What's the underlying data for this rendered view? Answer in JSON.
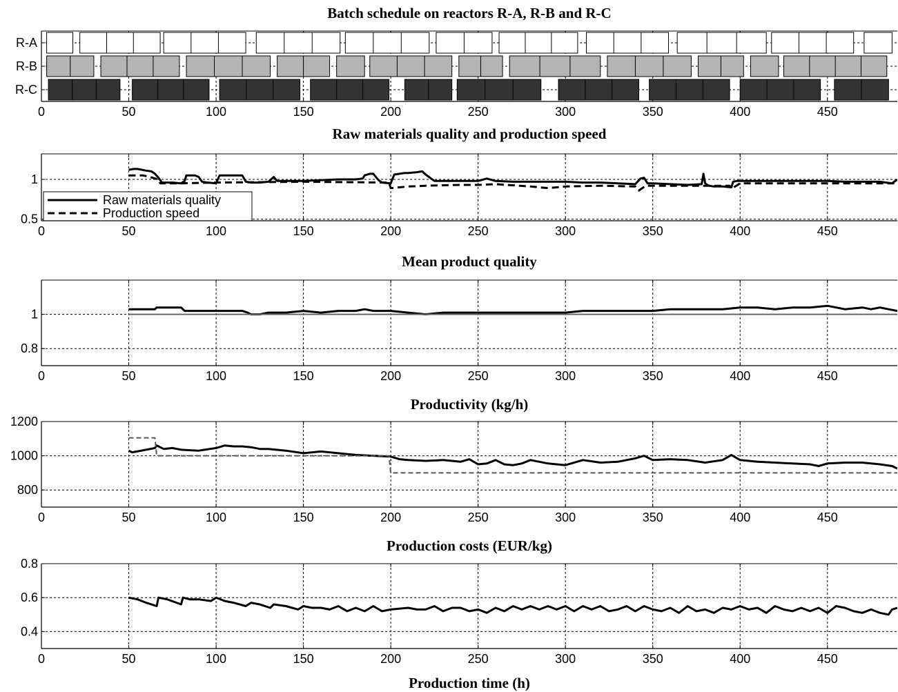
{
  "figure": {
    "xlabel": "Production time (h)"
  },
  "chart_data": [
    {
      "type": "gantt",
      "title": "Batch schedule on reactors R-A, R-B and R-C",
      "xlim": [
        0,
        490
      ],
      "xticks": [
        0,
        50,
        100,
        150,
        200,
        250,
        300,
        350,
        400,
        450
      ],
      "grid": true,
      "rows": [
        {
          "name": "R-A",
          "color": "#ffffff",
          "segments": [
            [
              3,
              18
            ],
            [
              22,
              68
            ],
            [
              70,
              117
            ],
            [
              123,
              171
            ],
            [
              174,
              222
            ],
            [
              226,
              258
            ],
            [
              262,
              307
            ],
            [
              312,
              359
            ],
            [
              364,
              415
            ],
            [
              418,
              465
            ],
            [
              471,
              487
            ]
          ]
        },
        {
          "name": "R-B",
          "color": "#b4b4b4",
          "segments": [
            [
              3,
              30
            ],
            [
              34,
              79
            ],
            [
              83,
              131
            ],
            [
              135,
              165
            ],
            [
              169,
              185
            ],
            [
              188,
              235
            ],
            [
              239,
              264
            ],
            [
              268,
              320
            ],
            [
              324,
              372
            ],
            [
              376,
              402
            ],
            [
              406,
              422
            ],
            [
              425,
              484
            ]
          ]
        },
        {
          "name": "R-C",
          "color": "#333333",
          "segments": [
            [
              4,
              45
            ],
            [
              52,
              96
            ],
            [
              102,
              148
            ],
            [
              154,
              199
            ],
            [
              208,
              235
            ],
            [
              238,
              286
            ],
            [
              296,
              342
            ],
            [
              348,
              394
            ],
            [
              400,
              446
            ],
            [
              454,
              485
            ]
          ]
        }
      ]
    },
    {
      "type": "line",
      "title": "Raw materials quality and production speed",
      "xlim": [
        0,
        490
      ],
      "ylim": [
        0.48,
        1.32
      ],
      "xticks": [
        0,
        50,
        100,
        150,
        200,
        250,
        300,
        350,
        400,
        450
      ],
      "yticks": [
        0.5,
        1
      ],
      "yticklabels": [
        "0.5",
        "1"
      ],
      "grid": true,
      "legend_placement": "bottom-left",
      "legend": [
        "Raw materials quality",
        "Production speed"
      ],
      "series": [
        {
          "name": "Raw materials quality",
          "style": "solid",
          "color": "#000000",
          "x": [
            50,
            53,
            55,
            60,
            63,
            65,
            67,
            69,
            75,
            80,
            82,
            83,
            85,
            88,
            90,
            92,
            95,
            100,
            102,
            105,
            110,
            115,
            117,
            120,
            125,
            130,
            133,
            135,
            140,
            150,
            160,
            170,
            180,
            184,
            185,
            188,
            190,
            193,
            195,
            200,
            202,
            205,
            208,
            210,
            215,
            218,
            220,
            225,
            230,
            240,
            250,
            255,
            260,
            270,
            280,
            290,
            300,
            310,
            320,
            330,
            340,
            343,
            345,
            347,
            350,
            360,
            370,
            378,
            379,
            380,
            382,
            385,
            390,
            395,
            396,
            398,
            400,
            410,
            420,
            430,
            440,
            450,
            460,
            470,
            480,
            487,
            490
          ],
          "y": [
            1.12,
            1.13,
            1.13,
            1.11,
            1.1,
            1.07,
            1.02,
            0.96,
            0.96,
            0.95,
            0.98,
            1.05,
            1.05,
            1.05,
            1.03,
            0.97,
            0.96,
            0.95,
            1.05,
            1.05,
            1.05,
            1.05,
            0.97,
            0.96,
            0.96,
            0.97,
            1.03,
            0.98,
            0.98,
            0.98,
            0.99,
            1.0,
            1.0,
            1.01,
            1.05,
            1.07,
            1.07,
            0.99,
            0.96,
            0.95,
            1.06,
            1.07,
            1.08,
            1.08,
            1.09,
            1.1,
            1.06,
            0.98,
            0.98,
            0.98,
            0.98,
            1.01,
            0.98,
            0.97,
            0.97,
            0.97,
            0.97,
            0.96,
            0.96,
            0.95,
            0.94,
            1.01,
            1.02,
            0.95,
            0.95,
            0.94,
            0.93,
            0.94,
            1.07,
            0.95,
            0.92,
            0.91,
            0.91,
            0.9,
            0.97,
            0.98,
            0.98,
            0.98,
            0.98,
            0.98,
            0.98,
            0.98,
            0.97,
            0.97,
            0.97,
            0.95,
            1.0
          ]
        },
        {
          "name": "Production speed",
          "style": "dashed",
          "color": "#000000",
          "x": [
            50,
            58,
            62,
            67,
            68,
            80,
            100,
            150,
            199,
            200,
            210,
            220,
            240,
            250,
            260,
            280,
            290,
            300,
            320,
            340,
            342,
            344,
            346,
            360,
            380,
            394,
            395,
            400,
            450,
            490
          ],
          "y": [
            1.05,
            1.05,
            1.03,
            1.0,
            0.95,
            0.95,
            0.96,
            0.97,
            0.96,
            0.89,
            0.91,
            0.92,
            0.93,
            0.93,
            0.94,
            0.91,
            0.89,
            0.91,
            0.92,
            0.91,
            0.86,
            0.89,
            0.92,
            0.92,
            0.92,
            0.92,
            0.88,
            0.95,
            0.95,
            0.95
          ]
        }
      ]
    },
    {
      "type": "line",
      "title": "Mean product quality",
      "xlim": [
        0,
        490
      ],
      "ylim": [
        0.7,
        1.2
      ],
      "xticks": [
        0,
        50,
        100,
        150,
        200,
        250,
        300,
        350,
        400,
        450
      ],
      "yticks": [
        0.8,
        1
      ],
      "yticklabels": [
        "0.8",
        "1"
      ],
      "grid": true,
      "series": [
        {
          "name": "",
          "style": "solid",
          "color": "#000000",
          "x": [
            50,
            60,
            65,
            66,
            75,
            80,
            82,
            90,
            100,
            110,
            115,
            118,
            120,
            125,
            130,
            140,
            150,
            160,
            170,
            180,
            185,
            190,
            200,
            210,
            220,
            230,
            240,
            250,
            260,
            270,
            280,
            290,
            300,
            310,
            320,
            330,
            340,
            350,
            360,
            370,
            380,
            390,
            400,
            410,
            420,
            430,
            440,
            450,
            460,
            470,
            475,
            480,
            485,
            490
          ],
          "y": [
            1.03,
            1.03,
            1.03,
            1.04,
            1.04,
            1.04,
            1.02,
            1.02,
            1.02,
            1.02,
            1.02,
            1.01,
            1.0,
            1.0,
            1.01,
            1.01,
            1.02,
            1.01,
            1.02,
            1.02,
            1.03,
            1.02,
            1.02,
            1.01,
            1.0,
            1.01,
            1.01,
            1.01,
            1.01,
            1.01,
            1.01,
            1.01,
            1.01,
            1.02,
            1.02,
            1.02,
            1.02,
            1.02,
            1.03,
            1.03,
            1.03,
            1.03,
            1.04,
            1.04,
            1.03,
            1.04,
            1.04,
            1.05,
            1.03,
            1.04,
            1.03,
            1.04,
            1.03,
            1.02
          ]
        },
        {
          "name": "",
          "style": "solid",
          "color": "#666666",
          "x": [
            50,
            490
          ],
          "y": [
            1.0,
            1.0
          ]
        }
      ]
    },
    {
      "type": "line",
      "title": "Productivity (kg/h)",
      "xlim": [
        0,
        490
      ],
      "ylim": [
        700,
        1200
      ],
      "xticks": [
        0,
        50,
        100,
        150,
        200,
        250,
        300,
        350,
        400,
        450
      ],
      "yticks": [
        800,
        1000,
        1200
      ],
      "yticklabels": [
        "800",
        "1000",
        "1200"
      ],
      "grid": true,
      "series": [
        {
          "name": "",
          "style": "solid",
          "color": "#000000",
          "x": [
            50,
            52,
            60,
            65,
            66,
            70,
            75,
            80,
            90,
            100,
            105,
            110,
            115,
            120,
            125,
            130,
            140,
            150,
            160,
            170,
            180,
            190,
            200,
            205,
            210,
            220,
            230,
            240,
            245,
            250,
            255,
            260,
            265,
            270,
            275,
            280,
            290,
            300,
            310,
            320,
            330,
            340,
            345,
            350,
            360,
            370,
            380,
            390,
            395,
            400,
            410,
            420,
            430,
            440,
            445,
            450,
            460,
            470,
            480,
            487,
            490
          ],
          "y": [
            1030,
            1020,
            1035,
            1045,
            1060,
            1040,
            1045,
            1035,
            1030,
            1045,
            1060,
            1055,
            1055,
            1050,
            1040,
            1040,
            1030,
            1015,
            1025,
            1015,
            1005,
            1000,
            995,
            980,
            975,
            970,
            975,
            965,
            980,
            950,
            955,
            975,
            950,
            945,
            955,
            975,
            955,
            945,
            975,
            960,
            965,
            985,
            1000,
            975,
            980,
            975,
            960,
            975,
            1005,
            975,
            965,
            960,
            955,
            950,
            940,
            955,
            960,
            960,
            950,
            940,
            925
          ]
        },
        {
          "name": "",
          "style": "dashed",
          "color": "#555555",
          "x": [
            50,
            65,
            66,
            199,
            200,
            490
          ],
          "y": [
            1105,
            1105,
            1000,
            1000,
            900,
            900
          ]
        }
      ]
    },
    {
      "type": "line",
      "title": "Production costs (EUR/kg)",
      "xlim": [
        0,
        490
      ],
      "ylim": [
        0.3,
        0.8
      ],
      "xticks": [
        0,
        50,
        100,
        150,
        200,
        250,
        300,
        350,
        400,
        450
      ],
      "yticks": [
        0.4,
        0.6,
        0.8
      ],
      "yticklabels": [
        "0.4",
        "0.6",
        "0.8"
      ],
      "grid": true,
      "series": [
        {
          "name": "",
          "style": "solid",
          "color": "#000000",
          "x": [
            50,
            55,
            60,
            66,
            67,
            72,
            80,
            81,
            85,
            90,
            97,
            100,
            105,
            110,
            117,
            120,
            125,
            131,
            133,
            140,
            147,
            150,
            155,
            160,
            165,
            170,
            175,
            180,
            185,
            190,
            195,
            200,
            210,
            215,
            220,
            225,
            230,
            235,
            240,
            245,
            250,
            255,
            260,
            265,
            270,
            275,
            280,
            285,
            290,
            295,
            300,
            305,
            310,
            315,
            320,
            325,
            330,
            335,
            340,
            345,
            350,
            355,
            360,
            365,
            370,
            375,
            380,
            385,
            390,
            395,
            400,
            405,
            410,
            415,
            420,
            425,
            430,
            435,
            440,
            445,
            450,
            455,
            460,
            465,
            470,
            475,
            480,
            485,
            487,
            490
          ],
          "y": [
            0.6,
            0.59,
            0.57,
            0.55,
            0.6,
            0.59,
            0.56,
            0.6,
            0.59,
            0.59,
            0.58,
            0.6,
            0.58,
            0.57,
            0.55,
            0.57,
            0.56,
            0.54,
            0.56,
            0.55,
            0.53,
            0.55,
            0.54,
            0.54,
            0.53,
            0.55,
            0.52,
            0.54,
            0.52,
            0.55,
            0.52,
            0.53,
            0.54,
            0.53,
            0.53,
            0.55,
            0.52,
            0.54,
            0.54,
            0.52,
            0.53,
            0.51,
            0.54,
            0.52,
            0.55,
            0.53,
            0.55,
            0.53,
            0.55,
            0.53,
            0.55,
            0.52,
            0.55,
            0.53,
            0.55,
            0.52,
            0.53,
            0.55,
            0.52,
            0.55,
            0.53,
            0.52,
            0.54,
            0.51,
            0.55,
            0.52,
            0.53,
            0.51,
            0.54,
            0.53,
            0.55,
            0.53,
            0.54,
            0.51,
            0.55,
            0.53,
            0.52,
            0.54,
            0.52,
            0.54,
            0.51,
            0.55,
            0.54,
            0.52,
            0.51,
            0.53,
            0.51,
            0.5,
            0.53,
            0.54
          ]
        }
      ]
    }
  ]
}
